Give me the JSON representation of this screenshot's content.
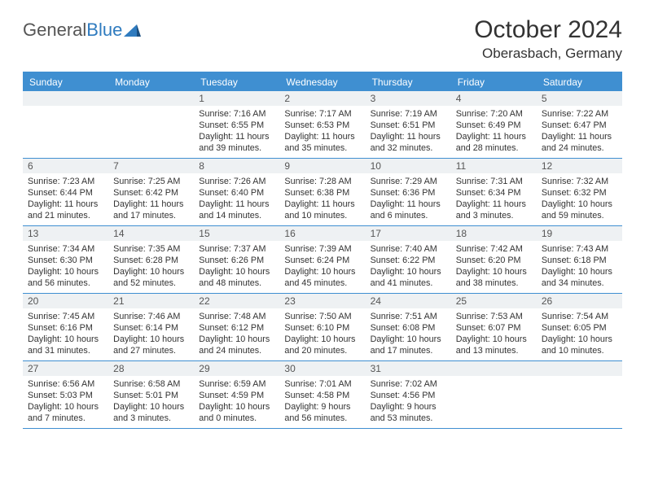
{
  "brand": {
    "text1": "General",
    "text2": "Blue"
  },
  "title": "October 2024",
  "location": "Oberasbach, Germany",
  "colors": {
    "header_bg": "#3f8fd1",
    "header_text": "#ffffff",
    "daynum_bg": "#eef1f3",
    "border": "#3f8fd1",
    "page_bg": "#ffffff",
    "text": "#333333"
  },
  "dow": [
    "Sunday",
    "Monday",
    "Tuesday",
    "Wednesday",
    "Thursday",
    "Friday",
    "Saturday"
  ],
  "weeks": [
    [
      {
        "n": "",
        "sr": "",
        "ss": "",
        "dl": ""
      },
      {
        "n": "",
        "sr": "",
        "ss": "",
        "dl": ""
      },
      {
        "n": "1",
        "sr": "Sunrise: 7:16 AM",
        "ss": "Sunset: 6:55 PM",
        "dl": "Daylight: 11 hours and 39 minutes."
      },
      {
        "n": "2",
        "sr": "Sunrise: 7:17 AM",
        "ss": "Sunset: 6:53 PM",
        "dl": "Daylight: 11 hours and 35 minutes."
      },
      {
        "n": "3",
        "sr": "Sunrise: 7:19 AM",
        "ss": "Sunset: 6:51 PM",
        "dl": "Daylight: 11 hours and 32 minutes."
      },
      {
        "n": "4",
        "sr": "Sunrise: 7:20 AM",
        "ss": "Sunset: 6:49 PM",
        "dl": "Daylight: 11 hours and 28 minutes."
      },
      {
        "n": "5",
        "sr": "Sunrise: 7:22 AM",
        "ss": "Sunset: 6:47 PM",
        "dl": "Daylight: 11 hours and 24 minutes."
      }
    ],
    [
      {
        "n": "6",
        "sr": "Sunrise: 7:23 AM",
        "ss": "Sunset: 6:44 PM",
        "dl": "Daylight: 11 hours and 21 minutes."
      },
      {
        "n": "7",
        "sr": "Sunrise: 7:25 AM",
        "ss": "Sunset: 6:42 PM",
        "dl": "Daylight: 11 hours and 17 minutes."
      },
      {
        "n": "8",
        "sr": "Sunrise: 7:26 AM",
        "ss": "Sunset: 6:40 PM",
        "dl": "Daylight: 11 hours and 14 minutes."
      },
      {
        "n": "9",
        "sr": "Sunrise: 7:28 AM",
        "ss": "Sunset: 6:38 PM",
        "dl": "Daylight: 11 hours and 10 minutes."
      },
      {
        "n": "10",
        "sr": "Sunrise: 7:29 AM",
        "ss": "Sunset: 6:36 PM",
        "dl": "Daylight: 11 hours and 6 minutes."
      },
      {
        "n": "11",
        "sr": "Sunrise: 7:31 AM",
        "ss": "Sunset: 6:34 PM",
        "dl": "Daylight: 11 hours and 3 minutes."
      },
      {
        "n": "12",
        "sr": "Sunrise: 7:32 AM",
        "ss": "Sunset: 6:32 PM",
        "dl": "Daylight: 10 hours and 59 minutes."
      }
    ],
    [
      {
        "n": "13",
        "sr": "Sunrise: 7:34 AM",
        "ss": "Sunset: 6:30 PM",
        "dl": "Daylight: 10 hours and 56 minutes."
      },
      {
        "n": "14",
        "sr": "Sunrise: 7:35 AM",
        "ss": "Sunset: 6:28 PM",
        "dl": "Daylight: 10 hours and 52 minutes."
      },
      {
        "n": "15",
        "sr": "Sunrise: 7:37 AM",
        "ss": "Sunset: 6:26 PM",
        "dl": "Daylight: 10 hours and 48 minutes."
      },
      {
        "n": "16",
        "sr": "Sunrise: 7:39 AM",
        "ss": "Sunset: 6:24 PM",
        "dl": "Daylight: 10 hours and 45 minutes."
      },
      {
        "n": "17",
        "sr": "Sunrise: 7:40 AM",
        "ss": "Sunset: 6:22 PM",
        "dl": "Daylight: 10 hours and 41 minutes."
      },
      {
        "n": "18",
        "sr": "Sunrise: 7:42 AM",
        "ss": "Sunset: 6:20 PM",
        "dl": "Daylight: 10 hours and 38 minutes."
      },
      {
        "n": "19",
        "sr": "Sunrise: 7:43 AM",
        "ss": "Sunset: 6:18 PM",
        "dl": "Daylight: 10 hours and 34 minutes."
      }
    ],
    [
      {
        "n": "20",
        "sr": "Sunrise: 7:45 AM",
        "ss": "Sunset: 6:16 PM",
        "dl": "Daylight: 10 hours and 31 minutes."
      },
      {
        "n": "21",
        "sr": "Sunrise: 7:46 AM",
        "ss": "Sunset: 6:14 PM",
        "dl": "Daylight: 10 hours and 27 minutes."
      },
      {
        "n": "22",
        "sr": "Sunrise: 7:48 AM",
        "ss": "Sunset: 6:12 PM",
        "dl": "Daylight: 10 hours and 24 minutes."
      },
      {
        "n": "23",
        "sr": "Sunrise: 7:50 AM",
        "ss": "Sunset: 6:10 PM",
        "dl": "Daylight: 10 hours and 20 minutes."
      },
      {
        "n": "24",
        "sr": "Sunrise: 7:51 AM",
        "ss": "Sunset: 6:08 PM",
        "dl": "Daylight: 10 hours and 17 minutes."
      },
      {
        "n": "25",
        "sr": "Sunrise: 7:53 AM",
        "ss": "Sunset: 6:07 PM",
        "dl": "Daylight: 10 hours and 13 minutes."
      },
      {
        "n": "26",
        "sr": "Sunrise: 7:54 AM",
        "ss": "Sunset: 6:05 PM",
        "dl": "Daylight: 10 hours and 10 minutes."
      }
    ],
    [
      {
        "n": "27",
        "sr": "Sunrise: 6:56 AM",
        "ss": "Sunset: 5:03 PM",
        "dl": "Daylight: 10 hours and 7 minutes."
      },
      {
        "n": "28",
        "sr": "Sunrise: 6:58 AM",
        "ss": "Sunset: 5:01 PM",
        "dl": "Daylight: 10 hours and 3 minutes."
      },
      {
        "n": "29",
        "sr": "Sunrise: 6:59 AM",
        "ss": "Sunset: 4:59 PM",
        "dl": "Daylight: 10 hours and 0 minutes."
      },
      {
        "n": "30",
        "sr": "Sunrise: 7:01 AM",
        "ss": "Sunset: 4:58 PM",
        "dl": "Daylight: 9 hours and 56 minutes."
      },
      {
        "n": "31",
        "sr": "Sunrise: 7:02 AM",
        "ss": "Sunset: 4:56 PM",
        "dl": "Daylight: 9 hours and 53 minutes."
      },
      {
        "n": "",
        "sr": "",
        "ss": "",
        "dl": ""
      },
      {
        "n": "",
        "sr": "",
        "ss": "",
        "dl": ""
      }
    ]
  ]
}
